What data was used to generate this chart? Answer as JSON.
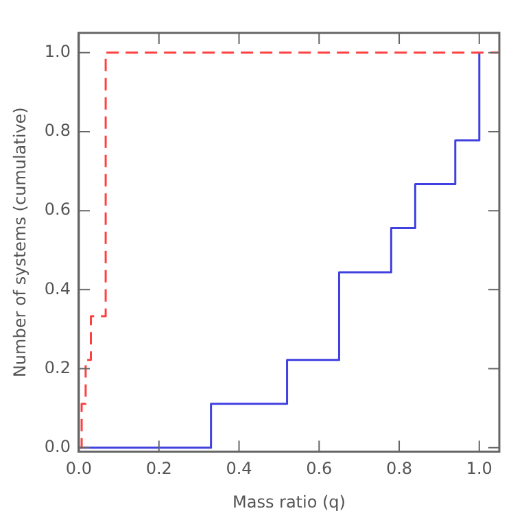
{
  "chart_data": {
    "type": "step",
    "xlabel": "Mass ratio (q)",
    "ylabel": "Number of systems (cumulative)",
    "xlim": [
      0,
      1.05
    ],
    "ylim": [
      -0.01,
      1.05
    ],
    "xticks": [
      {
        "value": 0,
        "label": "0.0"
      },
      0.2,
      0.4,
      0.6,
      0.8,
      {
        "value": 1,
        "label": "1.0"
      }
    ],
    "yticks": [
      {
        "value": 0,
        "label": "0.0"
      },
      0.2,
      0.4,
      0.6,
      0.8,
      {
        "value": 1,
        "label": "1.0"
      }
    ],
    "grid": false,
    "legend": false,
    "marker": "none",
    "series": [
      {
        "color": "#ff4040",
        "line_style": "dashed",
        "x": [
          0,
          0.007,
          0.017,
          0.03,
          0.067,
          1.05
        ],
        "values": [
          0,
          0.111,
          0.222,
          0.333,
          1.0,
          1.0
        ]
      },
      {
        "color": "#4040e0",
        "line_style": "solid",
        "x": [
          0,
          0.33,
          0.52,
          0.65,
          0.78,
          0.84,
          0.94,
          1.0
        ],
        "values": [
          0,
          0.111,
          0.222,
          0.444,
          0.556,
          0.667,
          0.778,
          1.0
        ]
      }
    ]
  }
}
